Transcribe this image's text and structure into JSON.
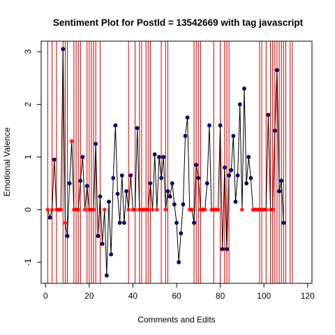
{
  "chart_data": {
    "type": "line",
    "title": "Sentiment Plot for PostId =  13542669  with tag  javascript",
    "xlabel": "Comments and Edits",
    "ylabel": "Emotional Valence",
    "xlim": [
      -2,
      122
    ],
    "ylim": [
      -1.4,
      3.2
    ],
    "x_ticks": [
      0,
      20,
      40,
      60,
      80,
      100,
      120
    ],
    "y_ticks": [
      -1,
      0,
      1,
      2,
      3
    ],
    "grid": false,
    "legend": "none",
    "colors": {
      "line": "#000000",
      "point_fill": "#00008b",
      "edit_marker": "#ff0000",
      "edit_line": "#cc0000"
    },
    "edit_lines_x": [
      1,
      3,
      5,
      8,
      9,
      10,
      13,
      14,
      15,
      16,
      19,
      20,
      21,
      22,
      23,
      25,
      38,
      41,
      43,
      44,
      46,
      47,
      48,
      53,
      55,
      56,
      68,
      69,
      70,
      71,
      77,
      80,
      82,
      83,
      84,
      98,
      99,
      101,
      103,
      104,
      105,
      106,
      107,
      108,
      109,
      110,
      112,
      113
    ],
    "series": [
      {
        "values": [
          [
            1,
            0
          ],
          [
            2,
            -0.15
          ],
          [
            3,
            0
          ],
          [
            4,
            0.95
          ],
          [
            5,
            0
          ],
          [
            6,
            0.0
          ],
          [
            7,
            0
          ],
          [
            8,
            3.05
          ],
          [
            9,
            -0.25
          ],
          [
            10,
            -0.5
          ],
          [
            11,
            0.5
          ],
          [
            12,
            1.3
          ],
          [
            13,
            0
          ],
          [
            14,
            0
          ],
          [
            15,
            0
          ],
          [
            16,
            0.55
          ],
          [
            17,
            1.0
          ],
          [
            18,
            0
          ],
          [
            19,
            0.45
          ],
          [
            20,
            0
          ],
          [
            21,
            0
          ],
          [
            22,
            0
          ],
          [
            23,
            1.25
          ],
          [
            24,
            -0.5
          ],
          [
            25,
            0.25
          ],
          [
            26,
            -0.65
          ],
          [
            27,
            0
          ],
          [
            28,
            -1.25
          ],
          [
            29,
            0.15
          ],
          [
            30,
            -0.85
          ],
          [
            31,
            0.6
          ],
          [
            32,
            1.6
          ],
          [
            33,
            0.3
          ],
          [
            34,
            -0.25
          ],
          [
            35,
            0.65
          ],
          [
            36,
            -0.25
          ],
          [
            37,
            0.35
          ],
          [
            38,
            0
          ],
          [
            39,
            0.65
          ],
          [
            40,
            0
          ],
          [
            41,
            0
          ],
          [
            42,
            1.55
          ],
          [
            43,
            0
          ],
          [
            44,
            0
          ],
          [
            45,
            0
          ],
          [
            46,
            0
          ],
          [
            47,
            0
          ],
          [
            48,
            0.5
          ],
          [
            49,
            0
          ],
          [
            50,
            1.05
          ],
          [
            51,
            0
          ],
          [
            52,
            1.0
          ],
          [
            53,
            0.6
          ],
          [
            54,
            1.0
          ],
          [
            55,
            0
          ],
          [
            56,
            0.35
          ],
          [
            57,
            0.25
          ],
          [
            58,
            0.5
          ],
          [
            59,
            0.1
          ],
          [
            60,
            -0.25
          ],
          [
            61,
            -1.0
          ],
          [
            62,
            -0.45
          ],
          [
            63,
            0.1
          ],
          [
            64,
            1.4
          ],
          [
            65,
            1.75
          ],
          [
            66,
            0
          ],
          [
            67,
            0
          ],
          [
            68,
            -0.25
          ],
          [
            69,
            0.85
          ],
          [
            70,
            0.6
          ],
          [
            71,
            0
          ],
          [
            72,
            0
          ],
          [
            73,
            0
          ],
          [
            74,
            0.5
          ],
          [
            75,
            1.6
          ],
          [
            76,
            0
          ],
          [
            77,
            0
          ],
          [
            78,
            0
          ],
          [
            79,
            0
          ],
          [
            80,
            1.6
          ],
          [
            81,
            -0.75
          ],
          [
            82,
            0.8
          ],
          [
            83,
            -0.75
          ],
          [
            84,
            0.65
          ],
          [
            85,
            0.75
          ],
          [
            86,
            1.4
          ],
          [
            87,
            0.15
          ],
          [
            88,
            0.65
          ],
          [
            89,
            2.0
          ],
          [
            90,
            0
          ],
          [
            91,
            2.3
          ],
          [
            92,
            0.5
          ],
          [
            93,
            1.0
          ],
          [
            94,
            0.6
          ],
          [
            95,
            0
          ],
          [
            96,
            0
          ],
          [
            97,
            0
          ],
          [
            98,
            0
          ],
          [
            99,
            0
          ],
          [
            100,
            0
          ],
          [
            101,
            0
          ],
          [
            102,
            1.8
          ],
          [
            103,
            0
          ],
          [
            104,
            0
          ],
          [
            105,
            1.5
          ],
          [
            106,
            2.65
          ],
          [
            107,
            0.35
          ],
          [
            108,
            0.55
          ],
          [
            109,
            -0.25
          ]
        ],
        "marker_type": [
          "edit",
          "comment",
          "edit",
          "comment",
          "edit",
          "edit",
          "edit",
          "comment",
          "edit",
          "comment",
          "comment",
          "edit",
          "edit",
          "edit",
          "edit",
          "comment",
          "comment",
          "edit",
          "comment",
          "edit",
          "edit",
          "edit",
          "comment",
          "comment",
          "comment",
          "comment",
          "edit",
          "comment",
          "comment",
          "comment",
          "comment",
          "comment",
          "comment",
          "comment",
          "comment",
          "comment",
          "comment",
          "edit",
          "comment",
          "edit",
          "edit",
          "comment",
          "edit",
          "edit",
          "edit",
          "edit",
          "edit",
          "comment",
          "edit",
          "comment",
          "edit",
          "comment",
          "comment",
          "comment",
          "edit",
          "comment",
          "comment",
          "comment",
          "comment",
          "comment",
          "comment",
          "comment",
          "comment",
          "comment",
          "comment",
          "edit",
          "edit",
          "comment",
          "comment",
          "comment",
          "edit",
          "edit",
          "edit",
          "comment",
          "comment",
          "edit",
          "edit",
          "edit",
          "edit",
          "comment",
          "comment",
          "comment",
          "comment",
          "comment",
          "comment",
          "comment",
          "comment",
          "comment",
          "comment",
          "edit",
          "comment",
          "comment",
          "comment",
          "comment",
          "edit",
          "edit",
          "edit",
          "edit",
          "edit",
          "edit",
          "edit",
          "comment",
          "edit",
          "edit",
          "comment",
          "comment",
          "comment",
          "comment",
          "comment"
        ]
      }
    ]
  }
}
